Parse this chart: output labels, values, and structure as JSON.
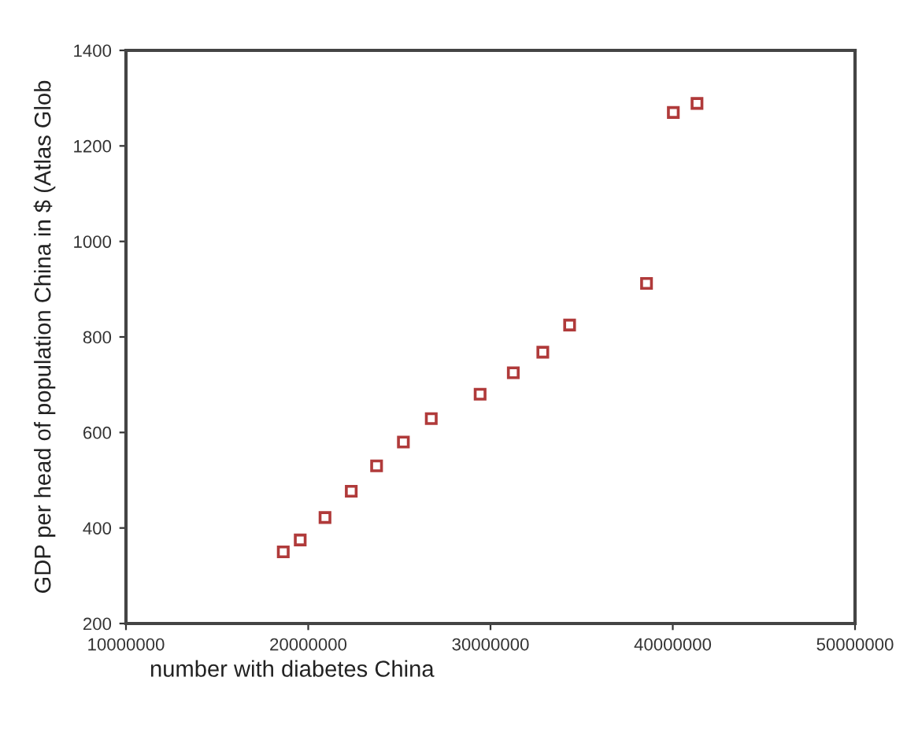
{
  "chart_data": {
    "type": "scatter",
    "xlabel": "number with diabetes China",
    "ylabel": "GDP per head of population China in $ (Atlas Glob",
    "x": [
      18630000,
      19560000,
      20920000,
      22360000,
      23750000,
      25220000,
      26750000,
      29430000,
      31250000,
      32870000,
      34340000,
      38560000,
      40030000,
      41330000
    ],
    "series": [
      {
        "color": "#b03a3a",
        "values": [
          350,
          375,
          422,
          477,
          530,
          580,
          629,
          680,
          725,
          768,
          825,
          912,
          1270,
          1289
        ]
      }
    ],
    "xlim": [
      10000000,
      50000000
    ],
    "xticks": [
      10000000,
      20000000,
      30000000,
      40000000,
      50000000
    ],
    "ylim": [
      200,
      1400
    ],
    "yticks": [
      200,
      400,
      600,
      800,
      1000,
      1200,
      1400
    ],
    "marker": "square",
    "grid": false,
    "legend": false
  }
}
